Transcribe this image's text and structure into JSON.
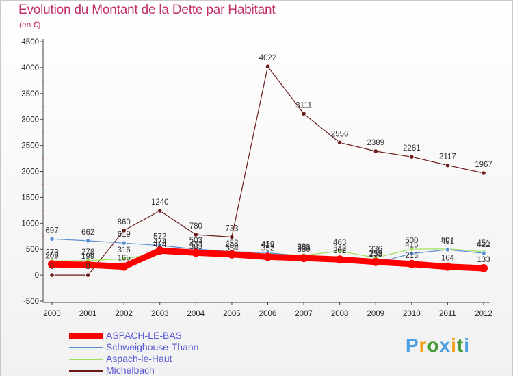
{
  "title": "Evolution du Montant de la Dette par Habitant",
  "unit": "(en €)",
  "brand": "Proxiti",
  "chart_data": {
    "type": "line",
    "title": "Evolution du Montant de la Dette par Habitant",
    "subtitle": "(en €)",
    "xlabel": "",
    "ylabel": "",
    "x": [
      2000,
      2001,
      2002,
      2003,
      2004,
      2005,
      2006,
      2007,
      2008,
      2009,
      2010,
      2011,
      2012
    ],
    "ylim": [
      -500,
      4500
    ],
    "yticks": [
      -500,
      0,
      500,
      1000,
      1500,
      2000,
      2500,
      3000,
      3500,
      4000,
      4500
    ],
    "grid": false,
    "legend": "bottom-left",
    "series": [
      {
        "name": "ASPACH-LE-BAS",
        "color": "#ff0000",
        "values": [
          209,
          199,
          165,
          474,
          433,
          400,
          352,
          330,
          302,
          255,
          215,
          164,
          133
        ]
      },
      {
        "name": "Schweighouse-Thann",
        "color": "#5b8fd0",
        "values": [
          697,
          662,
          619,
          572,
          503,
          452,
          432,
          363,
          342,
          238,
          415,
          491,
          422
        ]
      },
      {
        "name": "Aspach-le-Haut",
        "color": "#9ee05a",
        "values": [
          273,
          278,
          316,
          424,
          383,
          354,
          415,
          381,
          463,
          336,
          500,
          507,
          451
        ]
      },
      {
        "name": "Michelbach",
        "color": "#6b1a1a",
        "values": [
          0,
          0,
          860,
          1240,
          780,
          733,
          4022,
          3111,
          2556,
          2389,
          2281,
          2117,
          1967
        ]
      }
    ]
  }
}
